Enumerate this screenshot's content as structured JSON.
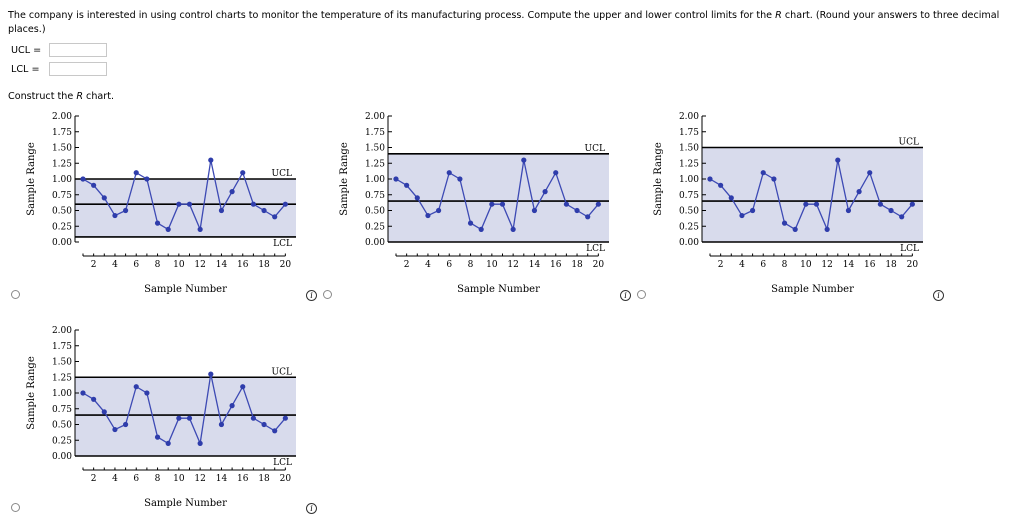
{
  "question": {
    "text_a": "The company is interested in using control charts to monitor the temperature of its manufacturing process. Compute the upper and lower control limits for the ",
    "r_italic": "R",
    "text_b": " chart. (Round your answers to three decimal places.)"
  },
  "answers": {
    "ucl_label": "UCL =",
    "lcl_label": "LCL =",
    "ucl_value": "",
    "lcl_value": ""
  },
  "construct": {
    "text": "Construct the ",
    "r_italic": "R",
    "suffix": " chart."
  },
  "info_glyph": "i",
  "chart_data": [
    {
      "option": 1,
      "type": "line",
      "xlabel": "Sample Number",
      "ylabel": "Sample Range",
      "xticks": [
        2,
        4,
        6,
        8,
        10,
        12,
        14,
        16,
        18,
        20
      ],
      "yticks": [
        "0.00",
        "0.25",
        "0.50",
        "0.75",
        "1.00",
        "1.25",
        "1.50",
        "1.75",
        "2.00"
      ],
      "ylim": [
        0,
        2
      ],
      "ucl": 1.0,
      "center": 0.6,
      "lcl": 0.08,
      "ucl_label": "UCL",
      "lcl_label": "LCL",
      "x": [
        1,
        2,
        3,
        4,
        5,
        6,
        7,
        8,
        9,
        10,
        11,
        12,
        13,
        14,
        15,
        16,
        17,
        18,
        19,
        20
      ],
      "values": [
        1.0,
        0.9,
        0.7,
        0.42,
        0.5,
        1.1,
        1.0,
        0.3,
        0.2,
        0.6,
        0.6,
        0.2,
        1.3,
        0.5,
        0.8,
        1.1,
        0.6,
        0.5,
        0.4,
        0.6
      ]
    },
    {
      "option": 2,
      "type": "line",
      "xlabel": "Sample Number",
      "ylabel": "Sample Range",
      "xticks": [
        2,
        4,
        6,
        8,
        10,
        12,
        14,
        16,
        18,
        20
      ],
      "yticks": [
        "0.00",
        "0.25",
        "0.50",
        "0.75",
        "1.00",
        "1.25",
        "1.50",
        "1.75",
        "2.00"
      ],
      "ylim": [
        0,
        2
      ],
      "ucl": 1.4,
      "center": 0.65,
      "lcl": 0.0,
      "ucl_label": "UCL",
      "lcl_label": "LCL",
      "x": [
        1,
        2,
        3,
        4,
        5,
        6,
        7,
        8,
        9,
        10,
        11,
        12,
        13,
        14,
        15,
        16,
        17,
        18,
        19,
        20
      ],
      "values": [
        1.0,
        0.9,
        0.7,
        0.42,
        0.5,
        1.1,
        1.0,
        0.3,
        0.2,
        0.6,
        0.6,
        0.2,
        1.3,
        0.5,
        0.8,
        1.1,
        0.6,
        0.5,
        0.4,
        0.6
      ]
    },
    {
      "option": 3,
      "type": "line",
      "xlabel": "Sample Number",
      "ylabel": "Sample Range",
      "xticks": [
        2,
        4,
        6,
        8,
        10,
        12,
        14,
        16,
        18,
        20
      ],
      "yticks": [
        "0.00",
        "0.25",
        "0.50",
        "0.75",
        "1.00",
        "1.25",
        "1.50",
        "1.75",
        "2.00"
      ],
      "ylim": [
        0,
        2
      ],
      "ucl": 1.5,
      "center": 0.65,
      "lcl": 0.0,
      "ucl_label": "UCL",
      "lcl_label": "LCL",
      "x": [
        1,
        2,
        3,
        4,
        5,
        6,
        7,
        8,
        9,
        10,
        11,
        12,
        13,
        14,
        15,
        16,
        17,
        18,
        19,
        20
      ],
      "values": [
        1.0,
        0.9,
        0.7,
        0.42,
        0.5,
        1.1,
        1.0,
        0.3,
        0.2,
        0.6,
        0.6,
        0.2,
        1.3,
        0.5,
        0.8,
        1.1,
        0.6,
        0.5,
        0.4,
        0.6
      ]
    },
    {
      "option": 4,
      "type": "line",
      "xlabel": "Sample Number",
      "ylabel": "Sample Range",
      "xticks": [
        2,
        4,
        6,
        8,
        10,
        12,
        14,
        16,
        18,
        20
      ],
      "yticks": [
        "0.00",
        "0.25",
        "0.50",
        "0.75",
        "1.00",
        "1.25",
        "1.50",
        "1.75",
        "2.00"
      ],
      "ylim": [
        0,
        2
      ],
      "ucl": 1.25,
      "center": 0.65,
      "lcl": 0.0,
      "ucl_label": "UCL",
      "lcl_label": "LCL",
      "x": [
        1,
        2,
        3,
        4,
        5,
        6,
        7,
        8,
        9,
        10,
        11,
        12,
        13,
        14,
        15,
        16,
        17,
        18,
        19,
        20
      ],
      "values": [
        1.0,
        0.9,
        0.7,
        0.42,
        0.5,
        1.1,
        1.0,
        0.3,
        0.2,
        0.6,
        0.6,
        0.2,
        1.3,
        0.5,
        0.8,
        1.1,
        0.6,
        0.5,
        0.4,
        0.6
      ]
    }
  ],
  "colors": {
    "band": "#d8dbec",
    "line": "#3d4ab4",
    "point": "#2f3dab",
    "limit": "#000000"
  }
}
